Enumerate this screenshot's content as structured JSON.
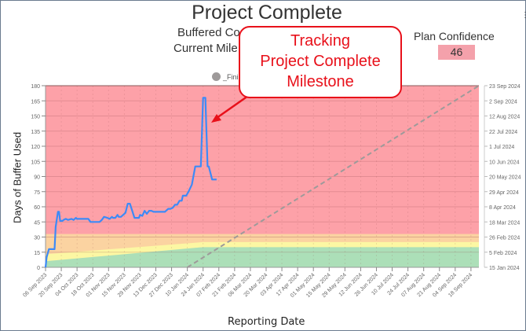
{
  "header": {
    "title": "Project Complete",
    "subtitle_line1": "Buffered Co",
    "subtitle_line2": "Current Mile",
    "plan_confidence_label": "Plan Confidence",
    "plan_confidence_value": "46"
  },
  "legend": {
    "items": [
      {
        "label": "_Fini",
        "color": "#9e9a9a"
      }
    ]
  },
  "callout": {
    "line1": "Tracking",
    "line2": "Project Complete",
    "line3": "Milestone",
    "color": "#e8101a"
  },
  "colors": {
    "red_zone": "#fda1a8",
    "orange_zone": "#fbd3a1",
    "yellow_zone": "#fcf7a3",
    "green_zone": "#acdfb8",
    "line": "#3d8af7",
    "dashed": "#9e9a9a",
    "callout": "#e8101a"
  },
  "chart_data": {
    "type": "line",
    "title": "Project Complete",
    "xlabel": "Reporting Date",
    "ylabel": "Days of Buffer Used",
    "ylim": [
      0,
      180
    ],
    "yticks": [
      0,
      15,
      30,
      45,
      60,
      75,
      90,
      105,
      120,
      135,
      150,
      165,
      180
    ],
    "y2ticks": [
      "15 Jan 2024",
      "5 Feb 2024",
      "26 Feb 2024",
      "18 Mar 2024",
      "8 Apr 2024",
      "29 Apr 2024",
      "20 May 2024",
      "10 Jun 2024",
      "1 Jul 2024",
      "22 Jul 2024",
      "12 Aug 2024",
      "2 Sep 2024",
      "23 Sep 2024"
    ],
    "xticks": [
      "06 Sep 2023",
      "20 Sep 2023",
      "04 Oct 2023",
      "18 Oct 2023",
      "01 Nov 2023",
      "15 Nov 2023",
      "29 Nov 2023",
      "13 Dec 2023",
      "27 Dec 2023",
      "10 Jan 2024",
      "24 Jan 2024",
      "07 Feb 2024",
      "21 Feb 2024",
      "06 Mar 2024",
      "20 Mar 2024",
      "03 Apr 2024",
      "17 Apr 2024",
      "01 May 2024",
      "15 May 2024",
      "29 May 2024",
      "12 Jun 2024",
      "26 Jun 2024",
      "10 Jul 2024",
      "24 Jul 2024",
      "07 Aug 2024",
      "21 Aug 2024",
      "04 Sep 2024",
      "18 Sep 2024"
    ],
    "grid": true,
    "legend_position": "top",
    "series": [
      {
        "name": "Days of Buffer Used",
        "x_days_from_06Sep2023": [
          0,
          1,
          3,
          5,
          8,
          9,
          11,
          12,
          13,
          15,
          16,
          18,
          20,
          23,
          25,
          27,
          28,
          29,
          31,
          33,
          34,
          36,
          38,
          40,
          41,
          43,
          45,
          48,
          50,
          52,
          55,
          57,
          59,
          60,
          62,
          64,
          65,
          67,
          69,
          71,
          73,
          75,
          79,
          81,
          83,
          84,
          86,
          88,
          90,
          92,
          94,
          96,
          97,
          100,
          102,
          104,
          106,
          109,
          111,
          113,
          115,
          117,
          119,
          121,
          122,
          125,
          127,
          130,
          133,
          136,
          138,
          140,
          142,
          144,
          145,
          148,
          150,
          152
        ],
        "values": [
          0,
          10,
          18,
          18,
          18,
          40,
          55,
          55,
          46,
          46,
          47,
          48,
          47,
          48,
          47,
          49,
          48,
          48,
          48,
          48,
          48,
          48,
          48,
          45,
          45,
          45,
          45,
          45,
          47,
          50,
          49,
          48,
          50,
          49,
          49,
          52,
          50,
          50,
          52,
          54,
          63,
          63,
          49,
          49,
          49,
          52,
          51,
          56,
          53,
          56,
          56,
          55,
          55,
          55,
          55,
          55,
          55,
          58,
          58,
          59,
          62,
          62,
          66,
          66,
          71,
          71,
          75,
          82,
          100,
          100,
          100,
          168,
          168,
          100,
          100,
          87,
          87,
          87
        ]
      }
    ],
    "zones": {
      "red": [
        33,
        180
      ],
      "orange": "≈13→33 early, narrowing to ≈25→33 after late Jan 2024",
      "yellow": "≈6→13 early, rising to ≈20→25 after late Jan 2024",
      "green": "0→6 early, rising to 0→20 after late Jan 2024"
    },
    "projection_line": {
      "style": "dashed",
      "from": {
        "x": "10 Jan 2024",
        "y": 0
      },
      "to": {
        "x": "23 Sep 2024",
        "y": 180
      }
    },
    "annotation": "Tracking Project Complete Milestone (arrow pointing at peak ≈168 days)"
  }
}
